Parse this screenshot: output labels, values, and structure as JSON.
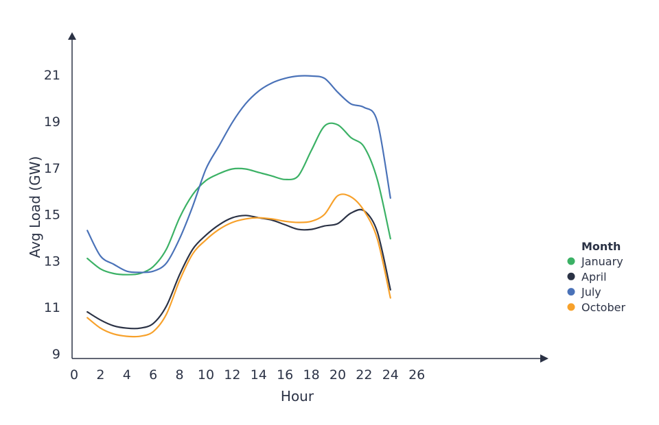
{
  "chart_data": {
    "type": "line",
    "title": "",
    "xlabel": "Hour",
    "ylabel": "Avg Load (GW)",
    "xlim": [
      0,
      26
    ],
    "ylim": [
      9,
      22
    ],
    "xticks": [
      0,
      2,
      4,
      6,
      8,
      10,
      12,
      14,
      16,
      18,
      20,
      22,
      24,
      26
    ],
    "yticks": [
      9,
      11,
      13,
      15,
      17,
      19,
      21
    ],
    "grid": false,
    "legend": {
      "title": "Month",
      "position": "right"
    },
    "x": [
      1,
      2,
      3,
      4,
      5,
      6,
      7,
      8,
      9,
      10,
      11,
      12,
      13,
      14,
      15,
      16,
      17,
      18,
      19,
      20,
      21,
      22,
      23,
      24
    ],
    "series": [
      {
        "name": "January",
        "color": "#3bb165",
        "values": [
          13.1,
          12.65,
          12.45,
          12.4,
          12.45,
          12.75,
          13.5,
          14.85,
          15.85,
          16.45,
          16.75,
          16.95,
          16.95,
          16.8,
          16.65,
          16.5,
          16.65,
          17.75,
          18.8,
          18.85,
          18.3,
          17.9,
          16.5,
          13.95
        ]
      },
      {
        "name": "April",
        "color": "#2b3245",
        "values": [
          10.8,
          10.45,
          10.2,
          10.1,
          10.1,
          10.3,
          11.05,
          12.4,
          13.5,
          14.1,
          14.55,
          14.85,
          14.95,
          14.85,
          14.75,
          14.55,
          14.35,
          14.35,
          14.5,
          14.6,
          15.05,
          15.15,
          14.25,
          11.75
        ]
      },
      {
        "name": "July",
        "color": "#4a72b8",
        "values": [
          14.3,
          13.2,
          12.85,
          12.55,
          12.5,
          12.55,
          12.9,
          13.95,
          15.35,
          16.95,
          17.95,
          18.95,
          19.75,
          20.3,
          20.65,
          20.85,
          20.95,
          20.95,
          20.85,
          20.25,
          19.75,
          19.6,
          19.0,
          15.7
        ]
      },
      {
        "name": "October",
        "color": "#f7a12b",
        "values": [
          10.55,
          10.1,
          9.85,
          9.75,
          9.75,
          9.95,
          10.7,
          12.15,
          13.3,
          13.9,
          14.35,
          14.65,
          14.8,
          14.85,
          14.8,
          14.7,
          14.65,
          14.7,
          15.0,
          15.8,
          15.75,
          15.15,
          13.95,
          11.4
        ]
      }
    ]
  }
}
